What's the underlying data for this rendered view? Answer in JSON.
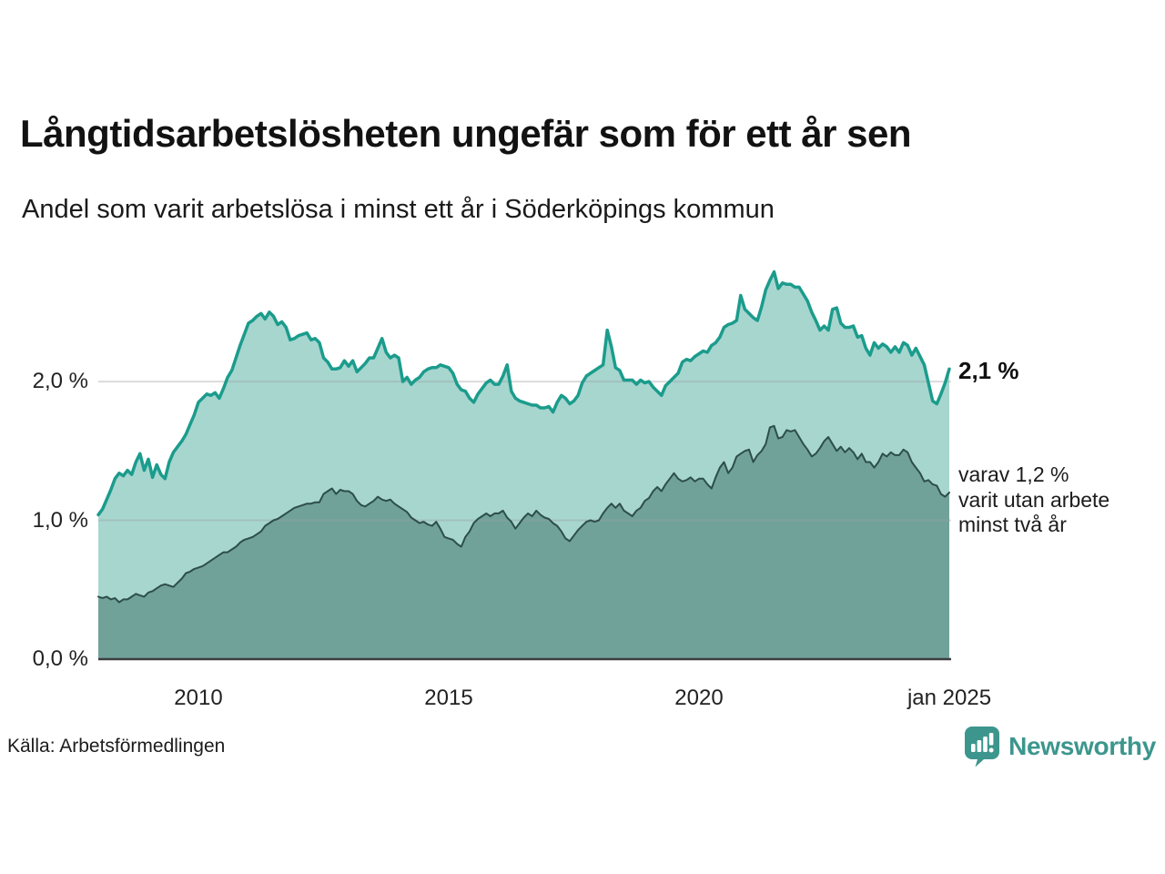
{
  "header": {
    "title": "Långtidsarbetslösheten ungefär som för ett år sen",
    "subtitle": "Andel som varit arbetslösa i minst ett år i Söderköpings kommun"
  },
  "annotations": {
    "latest_total": "2,1 %",
    "latest_two_plus_lines": [
      "varav 1,2 %",
      "varit utan arbete",
      "minst två år"
    ]
  },
  "footer": {
    "source": "Källa: Arbetsförmedlingen",
    "brand": "Newsworthy",
    "brand_icon": "bar-chart-speech-bubble-icon"
  },
  "colors": {
    "total_line": "#1b9c8c",
    "total_fill": "#a7d6cf",
    "two_plus_line": "#2d4e49",
    "two_plus_fill": "#70a29a",
    "gridline": "#9aa0a2",
    "axis_line": "#3d3d3d",
    "brand_teal": "#3c968d",
    "text": "#161616"
  },
  "chart_data": {
    "type": "area",
    "title": "Långtidsarbetslösheten ungefär som för ett år sen",
    "subtitle": "Andel som varit arbetslösa i minst ett år i Söderköpings kommun",
    "xlabel": "",
    "ylabel": "",
    "xlim": [
      2008,
      2025.0
    ],
    "ylim": [
      0,
      2.853
    ],
    "grid": "horizontal",
    "legend_position": "none",
    "x_ticks": [
      {
        "x": 2010,
        "label": "2010"
      },
      {
        "x": 2015,
        "label": "2015"
      },
      {
        "x": 2020,
        "label": "2020"
      },
      {
        "x": 2025.0,
        "label": "jan 2025"
      }
    ],
    "y_ticks": [
      {
        "v": 0.0,
        "label": "0,0 %"
      },
      {
        "v": 1.0,
        "label": "1,0 %"
      },
      {
        "v": 2.0,
        "label": "2,0 %"
      }
    ],
    "series": [
      {
        "name": "Andel arbetslösa minst ett år",
        "latest_label": "2,1 %",
        "color": "#1b9c8c",
        "fill": "#a7d6cf",
        "line_width": 3.5,
        "start_year": 2008,
        "step_months": 1,
        "values": [
          1.04,
          1.08,
          1.15,
          1.22,
          1.3,
          1.34,
          1.32,
          1.36,
          1.33,
          1.42,
          1.48,
          1.36,
          1.44,
          1.31,
          1.4,
          1.33,
          1.3,
          1.42,
          1.49,
          1.53,
          1.57,
          1.62,
          1.69,
          1.76,
          1.85,
          1.88,
          1.91,
          1.9,
          1.92,
          1.88,
          1.95,
          2.03,
          2.08,
          2.17,
          2.26,
          2.34,
          2.42,
          2.44,
          2.47,
          2.49,
          2.45,
          2.5,
          2.47,
          2.41,
          2.43,
          2.39,
          2.3,
          2.31,
          2.33,
          2.34,
          2.35,
          2.3,
          2.31,
          2.28,
          2.17,
          2.14,
          2.09,
          2.09,
          2.1,
          2.15,
          2.11,
          2.15,
          2.07,
          2.1,
          2.13,
          2.17,
          2.17,
          2.24,
          2.31,
          2.21,
          2.17,
          2.19,
          2.17,
          2.0,
          2.03,
          1.98,
          2.01,
          2.03,
          2.07,
          2.09,
          2.1,
          2.1,
          2.12,
          2.11,
          2.1,
          2.06,
          1.98,
          1.94,
          1.93,
          1.88,
          1.85,
          1.91,
          1.95,
          1.99,
          2.01,
          1.98,
          1.98,
          2.04,
          2.12,
          1.93,
          1.88,
          1.86,
          1.85,
          1.84,
          1.83,
          1.83,
          1.81,
          1.81,
          1.82,
          1.78,
          1.85,
          1.9,
          1.88,
          1.84,
          1.86,
          1.9,
          1.99,
          2.04,
          2.06,
          2.08,
          2.1,
          2.12,
          2.37,
          2.25,
          2.1,
          2.08,
          2.01,
          2.01,
          2.01,
          1.98,
          2.01,
          1.99,
          2.0,
          1.96,
          1.93,
          1.9,
          1.97,
          2.0,
          2.03,
          2.06,
          2.14,
          2.16,
          2.15,
          2.18,
          2.2,
          2.22,
          2.21,
          2.26,
          2.28,
          2.32,
          2.39,
          2.41,
          2.42,
          2.44,
          2.62,
          2.52,
          2.49,
          2.46,
          2.44,
          2.54,
          2.66,
          2.73,
          2.79,
          2.67,
          2.71,
          2.7,
          2.7,
          2.68,
          2.68,
          2.63,
          2.58,
          2.5,
          2.44,
          2.37,
          2.4,
          2.37,
          2.52,
          2.53,
          2.42,
          2.39,
          2.39,
          2.4,
          2.32,
          2.33,
          2.24,
          2.19,
          2.28,
          2.24,
          2.27,
          2.25,
          2.21,
          2.25,
          2.21,
          2.28,
          2.26,
          2.19,
          2.24,
          2.18,
          2.12,
          1.99,
          1.86,
          1.84,
          1.91,
          1.99,
          2.09
        ]
      },
      {
        "name": "varav utan arbete minst två år",
        "latest_label": "1,2 %",
        "color": "#2d4e49",
        "fill": "#70a29a",
        "line_width": 2,
        "start_year": 2008,
        "step_months": 1,
        "values": [
          0.45,
          0.44,
          0.45,
          0.43,
          0.44,
          0.41,
          0.43,
          0.43,
          0.45,
          0.47,
          0.46,
          0.45,
          0.48,
          0.49,
          0.51,
          0.53,
          0.54,
          0.53,
          0.52,
          0.55,
          0.58,
          0.62,
          0.63,
          0.65,
          0.66,
          0.67,
          0.69,
          0.71,
          0.73,
          0.75,
          0.77,
          0.77,
          0.79,
          0.81,
          0.84,
          0.86,
          0.87,
          0.88,
          0.9,
          0.92,
          0.96,
          0.98,
          1.0,
          1.01,
          1.03,
          1.05,
          1.07,
          1.09,
          1.1,
          1.11,
          1.12,
          1.12,
          1.13,
          1.13,
          1.19,
          1.21,
          1.23,
          1.19,
          1.22,
          1.21,
          1.21,
          1.19,
          1.14,
          1.11,
          1.1,
          1.12,
          1.14,
          1.17,
          1.15,
          1.14,
          1.15,
          1.12,
          1.1,
          1.08,
          1.06,
          1.02,
          1.0,
          0.98,
          0.99,
          0.97,
          0.96,
          0.99,
          0.94,
          0.88,
          0.87,
          0.86,
          0.83,
          0.81,
          0.88,
          0.92,
          0.98,
          1.01,
          1.03,
          1.05,
          1.03,
          1.05,
          1.05,
          1.07,
          1.02,
          0.99,
          0.94,
          0.98,
          1.02,
          1.05,
          1.03,
          1.07,
          1.04,
          1.02,
          1.01,
          0.98,
          0.96,
          0.92,
          0.87,
          0.85,
          0.89,
          0.93,
          0.96,
          0.99,
          1.0,
          0.99,
          1.0,
          1.05,
          1.09,
          1.12,
          1.09,
          1.12,
          1.07,
          1.05,
          1.03,
          1.07,
          1.09,
          1.14,
          1.16,
          1.21,
          1.24,
          1.21,
          1.26,
          1.3,
          1.34,
          1.3,
          1.28,
          1.29,
          1.31,
          1.28,
          1.3,
          1.3,
          1.26,
          1.23,
          1.31,
          1.38,
          1.42,
          1.34,
          1.38,
          1.46,
          1.48,
          1.5,
          1.51,
          1.42,
          1.47,
          1.5,
          1.55,
          1.67,
          1.68,
          1.59,
          1.6,
          1.65,
          1.64,
          1.65,
          1.6,
          1.55,
          1.51,
          1.46,
          1.48,
          1.52,
          1.57,
          1.6,
          1.55,
          1.5,
          1.53,
          1.49,
          1.52,
          1.49,
          1.44,
          1.48,
          1.42,
          1.42,
          1.38,
          1.42,
          1.48,
          1.46,
          1.49,
          1.47,
          1.47,
          1.51,
          1.49,
          1.42,
          1.38,
          1.34,
          1.28,
          1.29,
          1.26,
          1.25,
          1.19,
          1.17,
          1.2
        ]
      }
    ]
  }
}
